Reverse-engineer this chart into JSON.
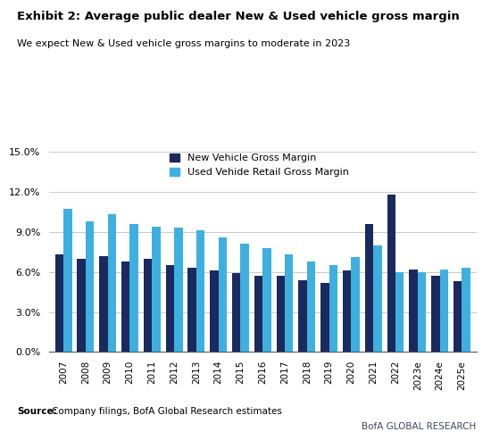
{
  "title": "Exhibit 2: Average public dealer New & Used vehicle gross margin",
  "subtitle": "We expect New & Used vehicle gross margins to moderate in 2023",
  "categories": [
    "2007",
    "2008",
    "2009",
    "2010",
    "2011",
    "2012",
    "2013",
    "2014",
    "2015",
    "2016",
    "2017",
    "2018",
    "2019",
    "2020",
    "2021",
    "2022",
    "2023e",
    "2024e",
    "2025e"
  ],
  "new_vehicle": [
    0.073,
    0.07,
    0.072,
    0.068,
    0.07,
    0.065,
    0.063,
    0.061,
    0.059,
    0.057,
    0.057,
    0.054,
    0.052,
    0.061,
    0.096,
    0.118,
    0.062,
    0.057,
    0.053
  ],
  "used_vehicle": [
    0.107,
    0.098,
    0.103,
    0.096,
    0.094,
    0.093,
    0.091,
    0.086,
    0.081,
    0.078,
    0.073,
    0.068,
    0.065,
    0.071,
    0.08,
    0.06,
    0.06,
    0.062,
    0.063
  ],
  "new_color": "#1a2a5e",
  "used_color": "#3db0e0",
  "bar_width": 0.38,
  "ylim": [
    0,
    0.155
  ],
  "yticks": [
    0.0,
    0.03,
    0.06,
    0.09,
    0.12,
    0.15
  ],
  "ytick_labels": [
    "0.0%",
    "3.0%",
    "6.0%",
    "9.0%",
    "12.0%",
    "15.0%"
  ],
  "legend_new": "New Vehicle Gross Margin",
  "legend_used": "Used Vehide Retail Gross Margin",
  "source_bold": "Source:",
  "source_text": "  Company filings, BofA Global Research estimates",
  "bofa_text": "BofA GLOBAL RESEARCH",
  "title_bar_color": "#1a3a8c",
  "background_color": "#ffffff",
  "grid_color": "#c0c0c0"
}
